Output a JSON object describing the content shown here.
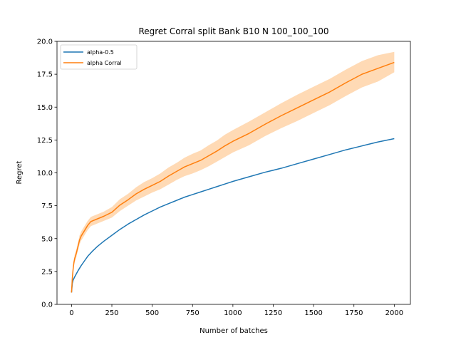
{
  "chart_data": {
    "type": "line",
    "title": "Regret Corral split Bank B10 N 100_100_100",
    "xlabel": "Number of batches",
    "ylabel": "Regret",
    "xlim": [
      -90,
      2100
    ],
    "ylim": [
      0,
      20
    ],
    "xticks": [
      0,
      250,
      500,
      750,
      1000,
      1250,
      1500,
      1750,
      2000
    ],
    "xtick_labels": [
      "0",
      "250",
      "500",
      "750",
      "1000",
      "1250",
      "1500",
      "1750",
      "2000"
    ],
    "yticks": [
      0,
      2.5,
      5,
      7.5,
      10,
      12.5,
      15,
      17.5,
      20
    ],
    "ytick_labels": [
      "0.0",
      "2.5",
      "5.0",
      "7.5",
      "10.0",
      "12.5",
      "15.0",
      "17.5",
      "20.0"
    ],
    "grid": false,
    "legend_position": "top-left",
    "series": [
      {
        "name": "alpha-0.5",
        "color": "#1f77b4",
        "x": [
          0,
          5,
          10,
          20,
          40,
          60,
          80,
          100,
          130,
          160,
          200,
          250,
          300,
          350,
          400,
          450,
          500,
          550,
          600,
          650,
          700,
          750,
          800,
          850,
          900,
          950,
          1000,
          1100,
          1200,
          1300,
          1400,
          1500,
          1600,
          1700,
          1800,
          1900,
          2000
        ],
        "values": [
          0.9,
          1.6,
          1.85,
          2.1,
          2.55,
          2.95,
          3.3,
          3.65,
          4.05,
          4.4,
          4.8,
          5.25,
          5.7,
          6.1,
          6.45,
          6.8,
          7.1,
          7.4,
          7.65,
          7.9,
          8.15,
          8.35,
          8.55,
          8.75,
          8.95,
          9.15,
          9.35,
          9.7,
          10.05,
          10.35,
          10.7,
          11.05,
          11.4,
          11.75,
          12.05,
          12.35,
          12.6
        ]
      },
      {
        "name": "alpha Corral",
        "color": "#ff7f0e",
        "band_color": "#ffbb78",
        "x": [
          0,
          5,
          10,
          15,
          20,
          30,
          40,
          50,
          60,
          80,
          100,
          120,
          150,
          200,
          250,
          300,
          350,
          400,
          450,
          500,
          550,
          600,
          650,
          700,
          750,
          800,
          850,
          900,
          950,
          1000,
          1100,
          1200,
          1300,
          1400,
          1500,
          1600,
          1700,
          1800,
          1900,
          2000
        ],
        "values": [
          0.9,
          2.0,
          2.7,
          3.2,
          3.5,
          3.9,
          4.4,
          4.9,
          5.2,
          5.6,
          6.0,
          6.3,
          6.45,
          6.7,
          7.0,
          7.55,
          7.95,
          8.4,
          8.75,
          9.05,
          9.35,
          9.75,
          10.1,
          10.45,
          10.7,
          10.95,
          11.3,
          11.65,
          12.05,
          12.4,
          13.0,
          13.7,
          14.35,
          14.95,
          15.55,
          16.15,
          16.85,
          17.5,
          17.95,
          18.4
        ],
        "lower": [
          0.8,
          1.8,
          2.5,
          2.95,
          3.2,
          3.6,
          4.1,
          4.55,
          4.85,
          5.25,
          5.65,
          5.95,
          6.1,
          6.35,
          6.6,
          7.1,
          7.5,
          7.9,
          8.2,
          8.5,
          8.75,
          9.1,
          9.45,
          9.75,
          9.95,
          10.2,
          10.5,
          10.85,
          11.2,
          11.55,
          12.1,
          12.8,
          13.4,
          13.95,
          14.55,
          15.15,
          15.85,
          16.5,
          16.95,
          17.65
        ],
        "upper": [
          1.0,
          2.2,
          2.9,
          3.45,
          3.8,
          4.2,
          4.7,
          5.25,
          5.55,
          5.95,
          6.35,
          6.65,
          6.8,
          7.05,
          7.4,
          8.0,
          8.4,
          8.9,
          9.3,
          9.6,
          9.95,
          10.4,
          10.75,
          11.15,
          11.45,
          11.7,
          12.1,
          12.45,
          12.9,
          13.25,
          13.9,
          14.6,
          15.3,
          15.95,
          16.55,
          17.15,
          17.85,
          18.5,
          18.95,
          19.2
        ]
      }
    ]
  }
}
